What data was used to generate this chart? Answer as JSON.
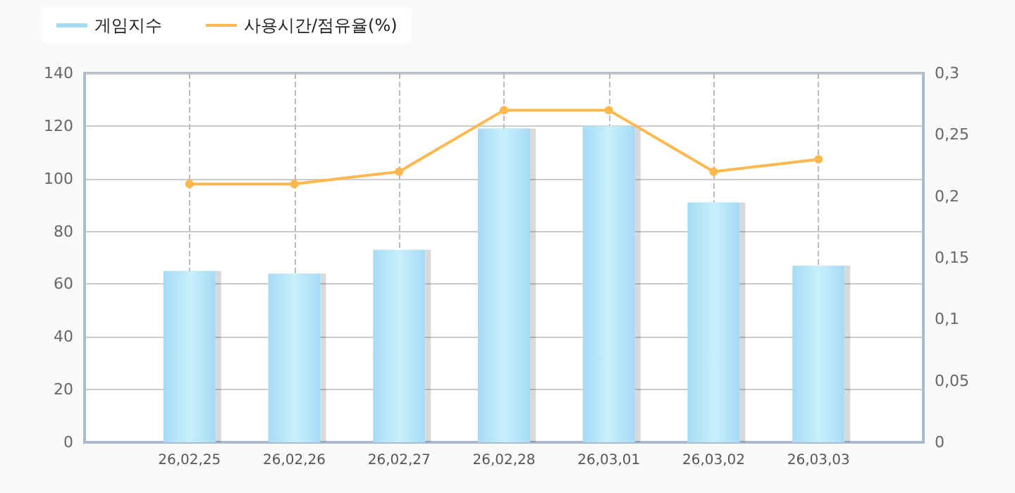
{
  "chart_data": {
    "type": "bar",
    "categories": [
      null,
      "26,02,25",
      "26,02,26",
      "26,02,27",
      "26,02,28",
      "26,03,01",
      "26,03,02",
      "26,03,03",
      null
    ],
    "series": [
      {
        "name": "게임지수",
        "color": "#a6dbf5",
        "values": [
          null,
          65,
          64,
          73,
          119,
          120,
          91,
          67,
          null
        ]
      },
      {
        "name": "사용시간/점유율(%)",
        "type": "line",
        "axis": "y2",
        "color": "#ffb84d",
        "marker": "circle",
        "values": [
          null,
          0.21,
          0.21,
          0.22,
          0.27,
          0.27,
          0.22,
          0.23,
          null
        ]
      }
    ],
    "ylim": [
      0,
      140
    ],
    "yticks": [
      0,
      20,
      40,
      60,
      80,
      100,
      120,
      140
    ],
    "y2lim": [
      0,
      0.3
    ],
    "y2ticks": [
      {
        "value": 0,
        "label": "0"
      },
      {
        "value": 0.05,
        "label": "0,05"
      },
      {
        "value": 0.1,
        "label": "0,1"
      },
      {
        "value": 0.15,
        "label": "0,15"
      },
      {
        "value": 0.2,
        "label": "0,2"
      },
      {
        "value": 0.25,
        "label": "0,25"
      },
      {
        "value": 0.3,
        "label": "0,3"
      }
    ],
    "grid": true,
    "legend": "top left"
  }
}
